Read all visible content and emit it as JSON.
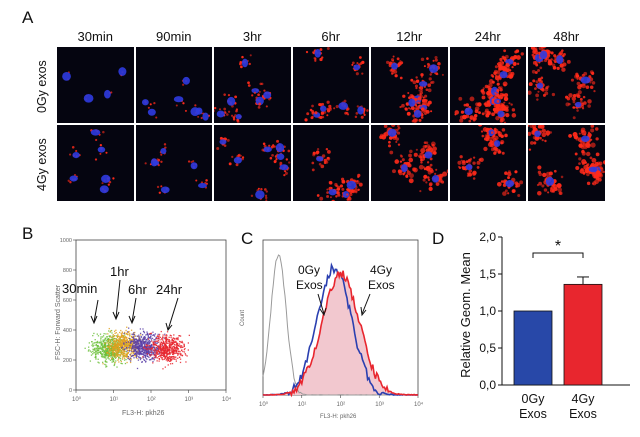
{
  "panelA": {
    "letter": "A",
    "timepoints": [
      "30min",
      "90min",
      "3hr",
      "6hr",
      "12hr",
      "24hr",
      "48hr"
    ],
    "rows": [
      "0Gy exos",
      "4Gy exos"
    ],
    "red_signal_level": {
      "0Gy exos": [
        0.05,
        0.08,
        0.25,
        0.35,
        0.55,
        0.8,
        0.7
      ],
      "4Gy exos": [
        0.15,
        0.15,
        0.3,
        0.55,
        0.85,
        0.75,
        0.9
      ]
    },
    "colors": {
      "nuclei": "#2f3be0",
      "exosomes": "#ff2a1a",
      "background": "#050510"
    }
  },
  "panelB": {
    "letter": "B",
    "xlabel": "FL3-H: pkh26",
    "ylabel": "FSC-H: Forward Scatter",
    "x_ticks": [
      "10⁰",
      "10¹",
      "10²",
      "10³",
      "10⁴"
    ],
    "y_ticks": [
      "0",
      "200",
      "400",
      "600",
      "800",
      "1000"
    ],
    "annotations": [
      "30min",
      "1hr",
      "6hr",
      "24hr"
    ]
  },
  "panelC": {
    "letter": "C",
    "ylabel": "Count",
    "xlabel": "FL3-H: pkh26",
    "x_ticks": [
      "10⁰",
      "10¹",
      "10²",
      "10³",
      "10⁴"
    ],
    "annotations": [
      [
        "0Gy",
        "Exos"
      ],
      [
        "4Gy",
        "Exos"
      ]
    ],
    "series_colors": {
      "control": "#9a9a9a",
      "0Gy": "#2a3fb0",
      "4Gy": "#e8262e",
      "fill": "#f2c8cf"
    }
  },
  "panelD": {
    "letter": "D",
    "chart_data": {
      "type": "bar",
      "categories": [
        [
          "0Gy",
          "Exos"
        ],
        [
          "4Gy",
          "Exos"
        ]
      ],
      "values": [
        1.0,
        1.36
      ],
      "errors": [
        0,
        0.1
      ],
      "ylabel": "Relative Geom. Mean",
      "ylim": [
        0,
        2.0
      ],
      "yticks": [
        "0,0",
        "0,5",
        "1,0",
        "1,5",
        "2,0"
      ],
      "significance": "*",
      "colors": [
        "#2848a8",
        "#e8262e"
      ]
    }
  }
}
